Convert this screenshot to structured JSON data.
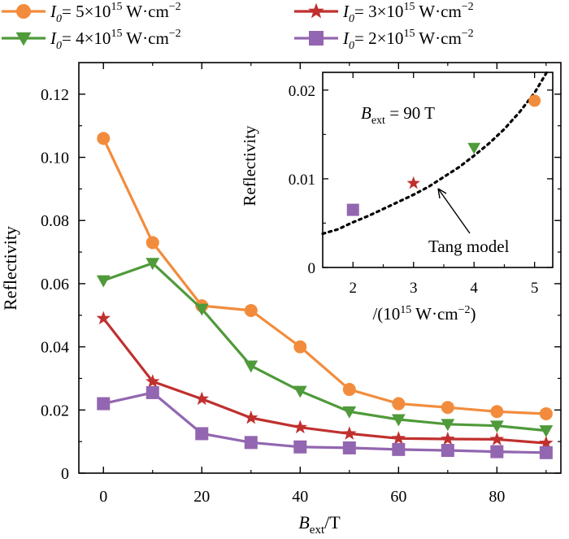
{
  "chart_data": [
    {
      "type": "line",
      "xlabel_main": "B",
      "xlabel_sub": "ext",
      "xlabel_tail": "/T",
      "ylabel": "Reflectivity",
      "xlim": [
        -5,
        93
      ],
      "ylim": [
        0,
        0.13
      ],
      "xticks": [
        0,
        20,
        40,
        60,
        80
      ],
      "xtick_labels": [
        "0",
        "20",
        "40",
        "60",
        "80"
      ],
      "yticks": [
        0,
        0.02,
        0.04,
        0.06,
        0.08,
        0.1,
        0.12
      ],
      "ytick_labels": [
        "0",
        "0.02",
        "0.04",
        "0.06",
        "0.08",
        "0.10",
        "0.12"
      ],
      "grid": false,
      "legend_position": "top",
      "x": [
        0,
        10,
        20,
        30,
        40,
        50,
        60,
        70,
        80,
        90
      ],
      "series": [
        {
          "legend_main": "= 5×10",
          "legend_exp": "15",
          "legend_unit": " W·cm",
          "legend_unit_exp": "−2",
          "color": "#f28c3c",
          "marker": "circle",
          "values": [
            0.106,
            0.073,
            0.053,
            0.0515,
            0.04,
            0.0265,
            0.022,
            0.0208,
            0.0195,
            0.0188
          ]
        },
        {
          "legend_main": "= 4×10",
          "legend_exp": "15",
          "legend_unit": " W·cm",
          "legend_unit_exp": "−2",
          "color": "#4f9a3a",
          "marker": "triangle-down",
          "values": [
            0.061,
            0.0665,
            0.052,
            0.034,
            0.026,
            0.0195,
            0.017,
            0.0155,
            0.015,
            0.0135
          ]
        },
        {
          "legend_main": "= 3×10",
          "legend_exp": "15",
          "legend_unit": " W·cm",
          "legend_unit_exp": "−2",
          "color": "#c0302e",
          "marker": "star",
          "values": [
            0.049,
            0.029,
            0.0235,
            0.0175,
            0.0145,
            0.0125,
            0.011,
            0.0108,
            0.0107,
            0.0095
          ]
        },
        {
          "legend_main": "= 2×10",
          "legend_exp": "15",
          "legend_unit": " W·cm",
          "legend_unit_exp": "−2",
          "color": "#9266b0",
          "marker": "square",
          "values": [
            0.022,
            0.0255,
            0.0125,
            0.0097,
            0.0083,
            0.008,
            0.0075,
            0.0072,
            0.0068,
            0.0065
          ]
        }
      ],
      "legend_symbol": "I",
      "legend_symbol_sub": "0"
    },
    {
      "type": "scatter",
      "ylabel": "Reflectivity",
      "xlabel_prefix": "/(10",
      "xlabel_exp": "15",
      "xlabel_unit": " W·cm",
      "xlabel_unit_exp": "−2",
      "xlabel_close": ")",
      "xlim": [
        1.5,
        5.3
      ],
      "ylim": [
        0,
        0.022
      ],
      "xticks": [
        2,
        3,
        4,
        5
      ],
      "xtick_labels": [
        "2",
        "3",
        "4",
        "5"
      ],
      "yticks": [
        0,
        0.01,
        0.02
      ],
      "ytick_labels": [
        "0",
        "0.01",
        "0.02"
      ],
      "annotation_main": "B",
      "annotation_sub": "ext",
      "annotation_tail": " = 90 T",
      "model_label": "Tang model",
      "points": [
        {
          "x": 5,
          "y": 0.0188,
          "marker": "circle",
          "color": "#f28c3c"
        },
        {
          "x": 4,
          "y": 0.0135,
          "marker": "triangle-down",
          "color": "#4f9a3a"
        },
        {
          "x": 3,
          "y": 0.0095,
          "marker": "star",
          "color": "#c0302e"
        },
        {
          "x": 2,
          "y": 0.0065,
          "marker": "square",
          "color": "#9266b0"
        }
      ],
      "model_curve": {
        "x": [
          1.5,
          1.75,
          2.0,
          2.25,
          2.5,
          2.75,
          3.0,
          3.25,
          3.5,
          3.75,
          4.0,
          4.25,
          4.5,
          4.75,
          5.0,
          5.2
        ],
        "y": [
          0.0038,
          0.0043,
          0.0051,
          0.0058,
          0.0066,
          0.0074,
          0.0082,
          0.0091,
          0.0102,
          0.0113,
          0.0126,
          0.014,
          0.0156,
          0.0175,
          0.0197,
          0.022
        ]
      },
      "arrow_target": {
        "x": 3.5,
        "y": 0.0098
      }
    }
  ]
}
